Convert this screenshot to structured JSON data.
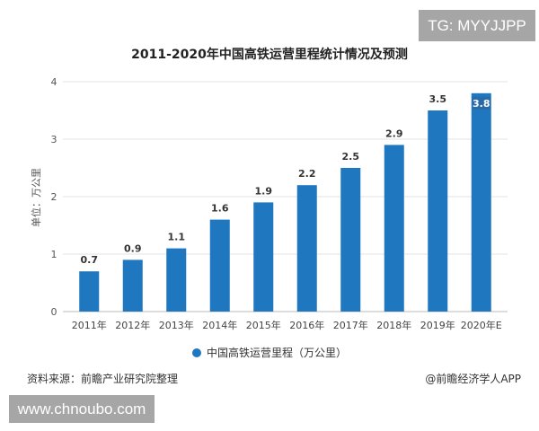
{
  "watermarks": {
    "top_right": "TG: MYYJJPP",
    "bottom_left": "www.chnoubo.com"
  },
  "chart_data": {
    "type": "bar",
    "title": "2011-2020年中国高铁运营里程统计情况及预测",
    "ylabel": "单位：万公里",
    "xlabel": "",
    "categories": [
      "2011年",
      "2012年",
      "2013年",
      "2014年",
      "2015年",
      "2016年",
      "2017年",
      "2018年",
      "2019年",
      "2020年E"
    ],
    "series": [
      {
        "name": "中国高铁运营里程（万公里）",
        "values": [
          0.7,
          0.9,
          1.1,
          1.6,
          1.9,
          2.2,
          2.5,
          2.9,
          3.5,
          3.8
        ]
      }
    ],
    "ylim": [
      0,
      4
    ],
    "yticks": [
      0,
      1,
      2,
      3,
      4
    ],
    "grid": true,
    "legend": "bottom",
    "color": "#1f77c0"
  },
  "footer": {
    "source": "资料来源：前瞻产业研究院整理",
    "credit": "@前瞻经济学人APP"
  }
}
